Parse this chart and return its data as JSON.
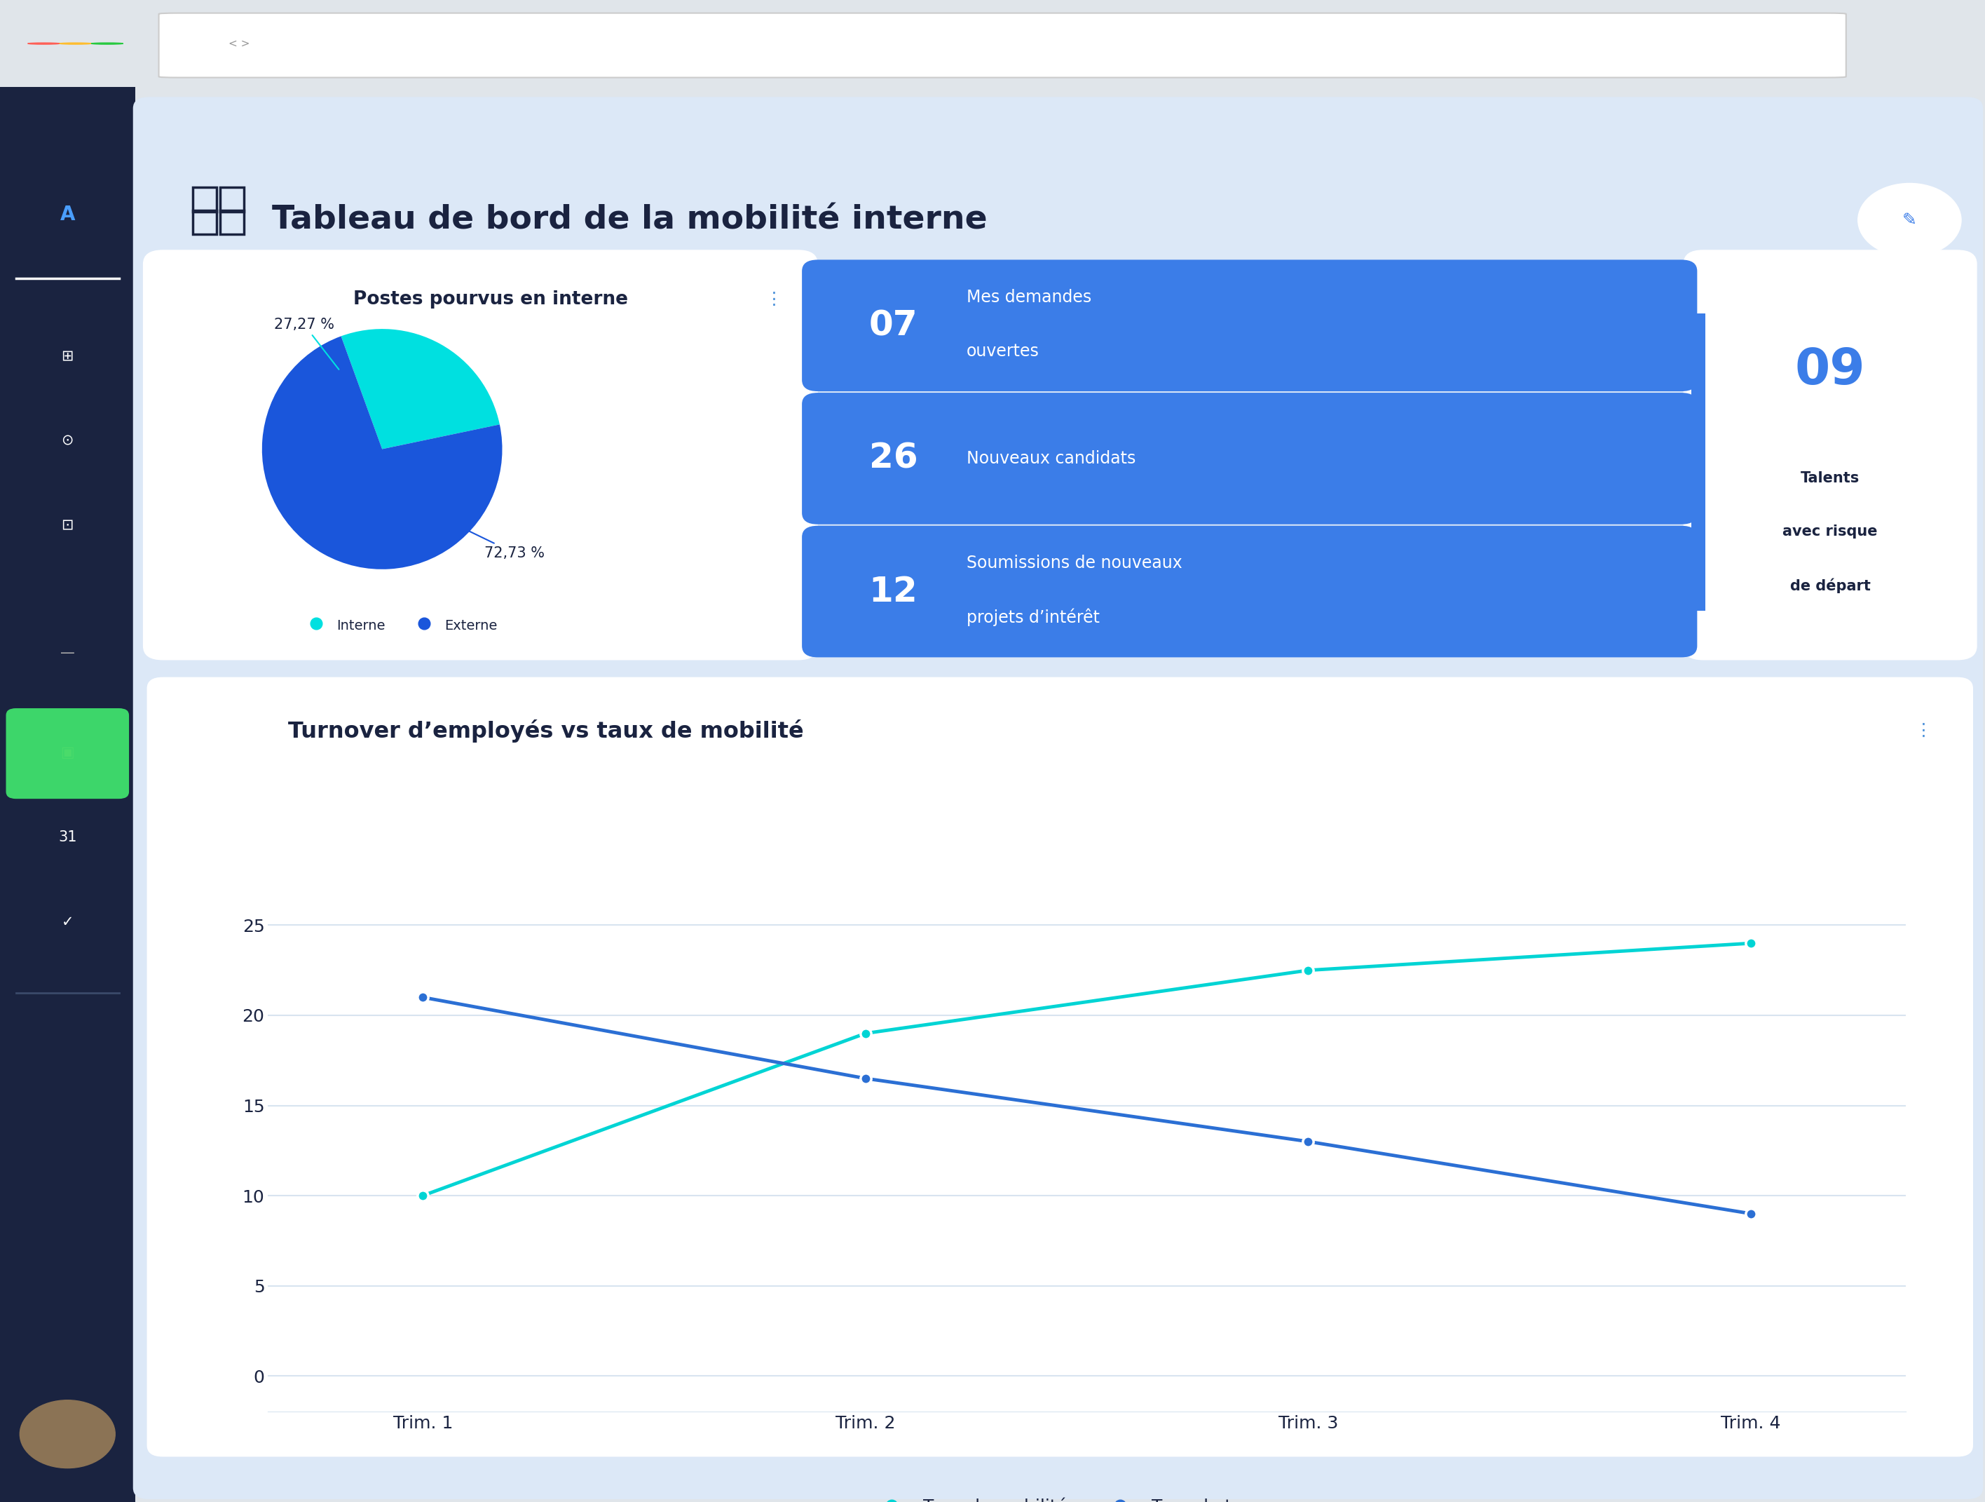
{
  "title": "Tableau de bord de la mobilité interne",
  "bg_gray": "#e0e5ea",
  "bg_main": "#dce8f7",
  "sidebar_color": "#1a2340",
  "card_white": "#ffffff",
  "blue_btn": "#3b7de8",
  "pie_interne_color": "#00e0e0",
  "pie_externe_color": "#1a56db",
  "pie_interne_pct": 27.27,
  "pie_externe_pct": 72.73,
  "pie_title": "Postes pourvus en interne",
  "kpi_cards": [
    {
      "number": "07",
      "label1": "Mes demandes",
      "label2": "ouvertes"
    },
    {
      "number": "26",
      "label1": "Nouveaux candidats",
      "label2": ""
    },
    {
      "number": "12",
      "label1": "Soumissions de nouveaux",
      "label2": "projets d’intérêt"
    }
  ],
  "talent_number": "09",
  "talent_label": [
    "Talents",
    "avec risque",
    "de départ"
  ],
  "talent_num_color": "#3b7de8",
  "talent_text_color": "#1a2340",
  "chart_title": "Turnover d’employés vs taux de mobilité",
  "x_labels": [
    "Trim. 1",
    "Trim. 2",
    "Trim. 3",
    "Trim. 4"
  ],
  "mobility_values": [
    10,
    19,
    22.5,
    24
  ],
  "turnover_values": [
    21,
    16.5,
    13,
    9
  ],
  "mobility_color": "#00d4d4",
  "turnover_color": "#2b6fd4",
  "legend_mobility": "Taux de mobilité",
  "legend_turnover": "Taux de turnover",
  "y_ticks": [
    0,
    5,
    10,
    15,
    20,
    25
  ],
  "title_color": "#1a2340",
  "grid_color": "#d8e4f0",
  "dot_colors": [
    "#ff5f56",
    "#ffbd2e",
    "#27c93f"
  ]
}
